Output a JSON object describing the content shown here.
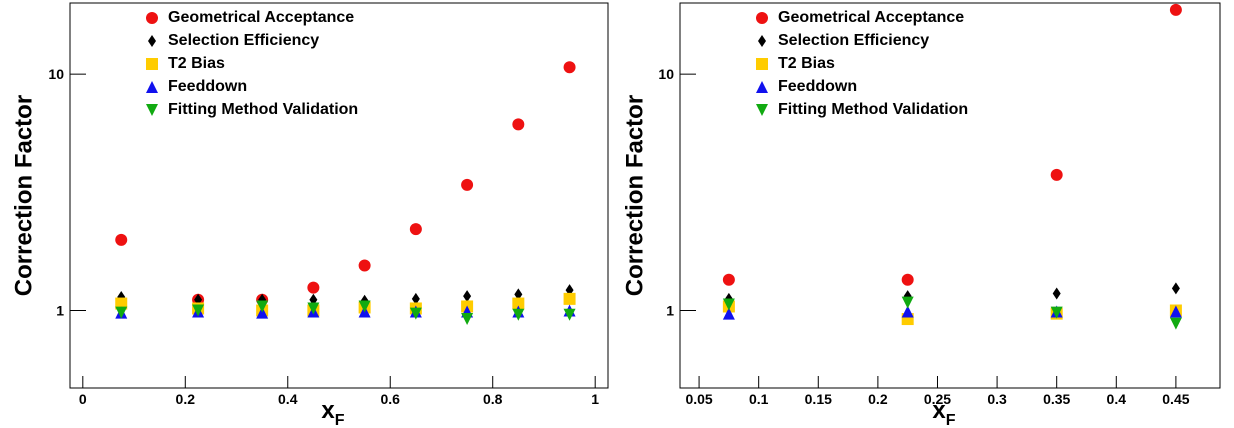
{
  "chart_data": [
    {
      "type": "scatter",
      "log_y": true,
      "ylabel": "Correction Factor",
      "xlabel": {
        "text": "x",
        "subscript": "F"
      },
      "xlim": [
        -0.025,
        1.025
      ],
      "xticks": [
        0,
        0.2,
        0.4,
        0.6,
        0.8,
        1
      ],
      "ylim": [
        0.47,
        20
      ],
      "yticks": [
        1,
        10
      ],
      "x": [
        0.075,
        0.225,
        0.35,
        0.45,
        0.55,
        0.65,
        0.75,
        0.85,
        0.95
      ],
      "series": [
        {
          "name": "Geometrical Acceptance",
          "color": "#ee1111",
          "marker": "circle",
          "values": [
            1.99,
            1.11,
            1.11,
            1.25,
            1.55,
            2.21,
            3.4,
            6.13,
            10.7
          ]
        },
        {
          "name": "Selection Efficiency",
          "color": "#000000",
          "marker": "diamond",
          "values": [
            1.14,
            1.11,
            1.11,
            1.11,
            1.1,
            1.12,
            1.15,
            1.17,
            1.22
          ]
        },
        {
          "name": "T2 Bias",
          "color": "#ffcc00",
          "marker": "square",
          "values": [
            1.07,
            1.02,
            1.0,
            1.0,
            1.03,
            1.02,
            1.04,
            1.07,
            1.12
          ]
        },
        {
          "name": "Feeddown",
          "color": "#1111ee",
          "marker": "triangle-up",
          "values": [
            0.98,
            0.99,
            0.98,
            0.99,
            0.99,
            0.99,
            0.99,
            0.99,
            1.0
          ]
        },
        {
          "name": "Fitting Method Validation",
          "color": "#11aa11",
          "marker": "triangle-down",
          "values": [
            0.98,
            1.0,
            1.04,
            1.02,
            1.04,
            0.97,
            0.92,
            0.96,
            0.96
          ]
        }
      ]
    },
    {
      "type": "scatter",
      "log_y": true,
      "ylabel": "Correction Factor",
      "xlabel": {
        "text": "x",
        "subscript": "F"
      },
      "xlim": [
        0.034,
        0.487
      ],
      "xticks": [
        0.05,
        0.1,
        0.15,
        0.2,
        0.25,
        0.3,
        0.35,
        0.4,
        0.45
      ],
      "ylim": [
        0.47,
        20
      ],
      "yticks": [
        1,
        10
      ],
      "x": [
        0.075,
        0.225,
        0.35,
        0.45
      ],
      "series": [
        {
          "name": "Geometrical Acceptance",
          "color": "#ee1111",
          "marker": "circle",
          "values": [
            1.35,
            1.35,
            3.75,
            18.7
          ]
        },
        {
          "name": "Selection Efficiency",
          "color": "#000000",
          "marker": "diamond",
          "values": [
            1.12,
            1.15,
            1.18,
            1.24
          ]
        },
        {
          "name": "T2 Bias",
          "color": "#ffcc00",
          "marker": "square",
          "values": [
            1.04,
            0.92,
            0.97,
            1.0
          ]
        },
        {
          "name": "Feeddown",
          "color": "#1111ee",
          "marker": "triangle-up",
          "values": [
            0.97,
            0.99,
            0.99,
            0.99
          ]
        },
        {
          "name": "Fitting Method Validation",
          "color": "#11aa11",
          "marker": "triangle-down",
          "values": [
            1.06,
            1.08,
            0.98,
            0.88
          ]
        }
      ]
    }
  ]
}
